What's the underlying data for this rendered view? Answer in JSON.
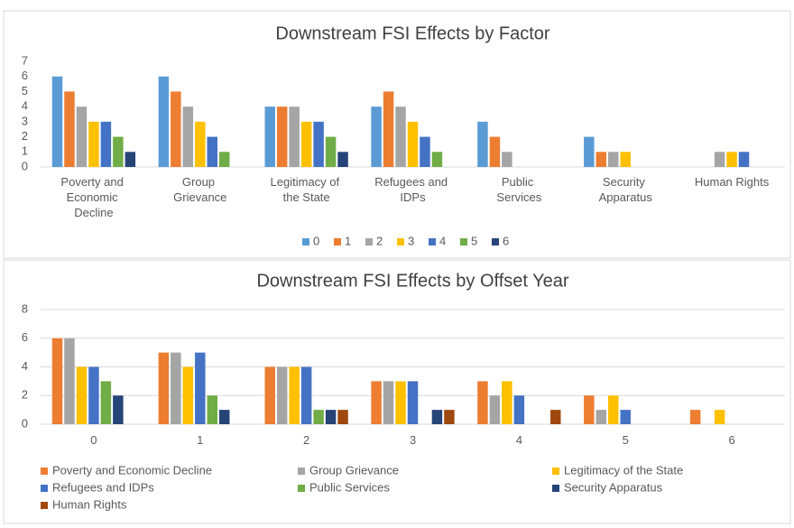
{
  "chart_data": [
    {
      "type": "bar",
      "title": "Downstream FSI Effects by Factor",
      "categories": [
        "Poverty and Economic Decline",
        "Group Grievance",
        "Legitimacy of the State",
        "Refugees and IDPs",
        "Public Services",
        "Security Apparatus",
        "Human Rights"
      ],
      "series": [
        {
          "name": "0",
          "color": "#5b9bd5",
          "values": [
            6,
            6,
            4,
            4,
            3,
            2,
            null
          ]
        },
        {
          "name": "1",
          "color": "#ed7d31",
          "values": [
            5,
            5,
            4,
            5,
            2,
            1,
            null
          ]
        },
        {
          "name": "2",
          "color": "#a5a5a5",
          "values": [
            4,
            4,
            4,
            4,
            1,
            1,
            1
          ]
        },
        {
          "name": "3",
          "color": "#ffc000",
          "values": [
            3,
            3,
            3,
            3,
            null,
            1,
            1
          ]
        },
        {
          "name": "4",
          "color": "#4472c4",
          "values": [
            3,
            2,
            3,
            2,
            null,
            null,
            1
          ]
        },
        {
          "name": "5",
          "color": "#70ad47",
          "values": [
            2,
            1,
            2,
            1,
            null,
            null,
            null
          ]
        },
        {
          "name": "6",
          "color": "#264478",
          "values": [
            1,
            null,
            1,
            null,
            null,
            null,
            null
          ]
        }
      ],
      "ylim": [
        0,
        7
      ],
      "yticks": [
        0,
        1,
        2,
        3,
        4,
        5,
        6,
        7
      ],
      "grid": false,
      "legend": "bottom"
    },
    {
      "type": "bar",
      "title": "Downstream FSI Effects by Offset Year",
      "categories": [
        "0",
        "1",
        "2",
        "3",
        "4",
        "5",
        "6"
      ],
      "series": [
        {
          "name": "Poverty and Economic Decline",
          "color": "#ed7d31",
          "values": [
            6,
            5,
            4,
            3,
            3,
            2,
            1
          ]
        },
        {
          "name": "Group Grievance",
          "color": "#a5a5a5",
          "values": [
            6,
            5,
            4,
            3,
            2,
            1,
            null
          ]
        },
        {
          "name": "Legitimacy of the State",
          "color": "#ffc000",
          "values": [
            4,
            4,
            4,
            3,
            3,
            2,
            1
          ]
        },
        {
          "name": "Refugees and IDPs",
          "color": "#4472c4",
          "values": [
            4,
            5,
            4,
            3,
            2,
            1,
            null
          ]
        },
        {
          "name": "Public Services",
          "color": "#70ad47",
          "values": [
            3,
            2,
            1,
            null,
            null,
            null,
            null
          ]
        },
        {
          "name": "Security Apparatus",
          "color": "#264478",
          "values": [
            2,
            1,
            1,
            1,
            null,
            null,
            null
          ]
        },
        {
          "name": "Human Rights",
          "color": "#9e480e",
          "values": [
            null,
            null,
            1,
            1,
            1,
            null,
            null
          ]
        }
      ],
      "ylim": [
        0,
        8
      ],
      "yticks": [
        0,
        2,
        4,
        6,
        8
      ],
      "grid": true,
      "legend": "bottom"
    }
  ]
}
